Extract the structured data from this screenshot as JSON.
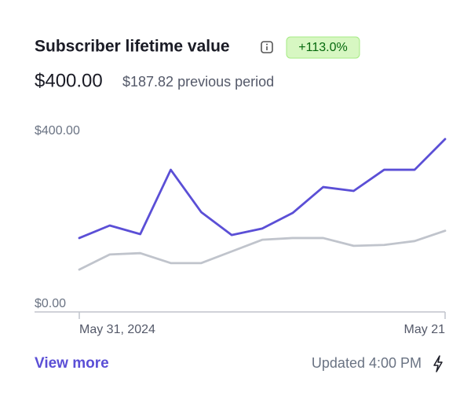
{
  "header": {
    "title": "Subscriber lifetime value",
    "badge": "+113.0%",
    "value": "$400.00",
    "previous": "$187.82 previous period"
  },
  "chart_data": {
    "type": "line",
    "categories": [
      "May 31, 2024",
      null,
      null,
      null,
      null,
      null,
      null,
      null,
      null,
      null,
      null,
      null,
      "May 21"
    ],
    "series": [
      {
        "color": "#5b4fd6",
        "values": [
          171,
          200,
          180,
          329,
          231,
          178,
          193,
          229,
          289,
          280,
          329,
          329,
          400
        ]
      },
      {
        "color": "#c0c4cc",
        "values": [
          98,
          133,
          136,
          113,
          113,
          140,
          167,
          171,
          171,
          153,
          155,
          164,
          187.82
        ]
      }
    ],
    "ylim": [
      0,
      400
    ],
    "yticks": [
      {
        "value": 0,
        "label": "$0.00"
      },
      {
        "value": 400,
        "label": "$400.00"
      }
    ]
  },
  "footer": {
    "link": "View more",
    "updated": "Updated 4:00 PM"
  }
}
